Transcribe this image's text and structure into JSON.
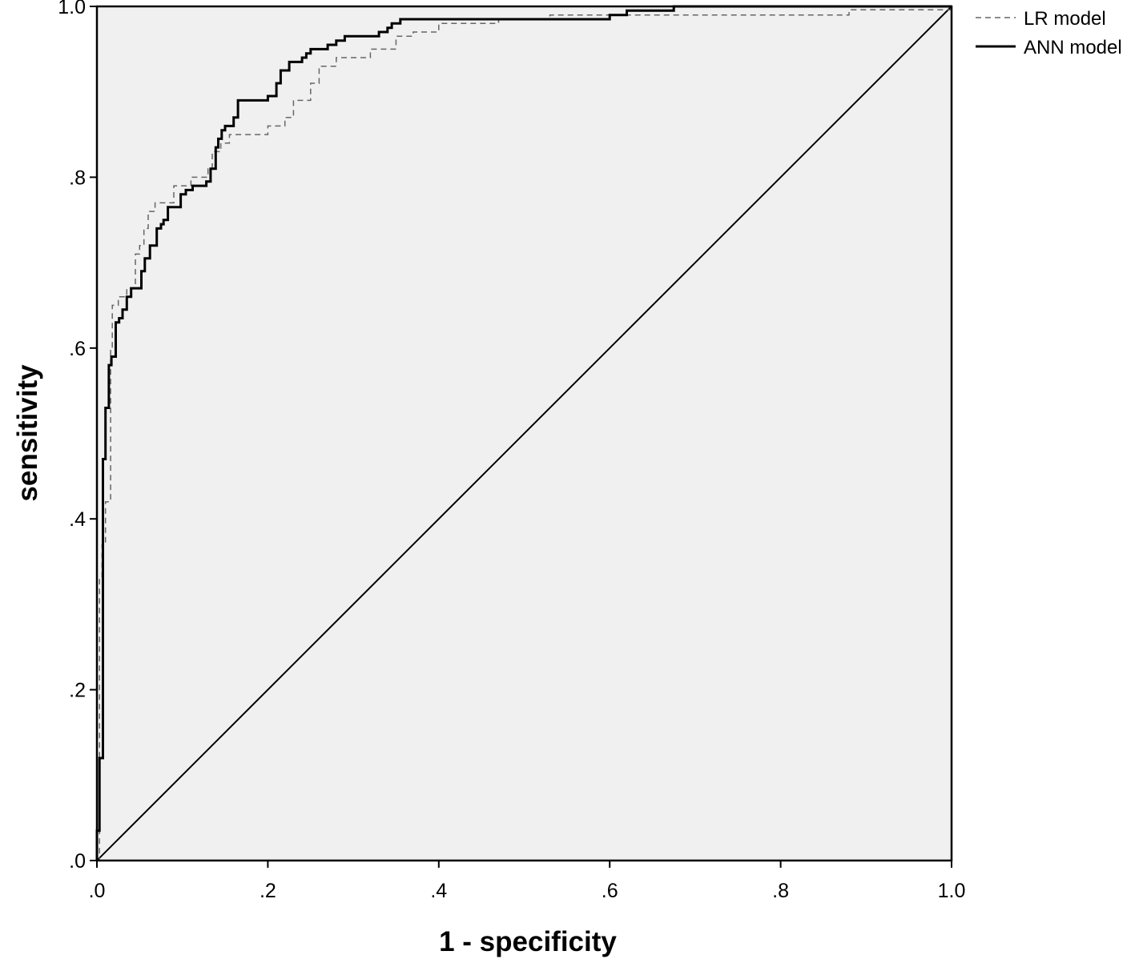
{
  "chart_data": {
    "type": "line",
    "title": "",
    "xlabel": "1 - specificity",
    "ylabel": "sensitivity",
    "xlim": [
      0,
      1
    ],
    "ylim": [
      0,
      1
    ],
    "x_ticks": [
      0,
      0.2,
      0.4,
      0.6,
      0.8,
      1.0
    ],
    "x_tick_labels": [
      ".0",
      ".2",
      ".4",
      ".6",
      ".8",
      "1.0"
    ],
    "y_ticks": [
      0,
      0.2,
      0.4,
      0.6,
      0.8,
      1.0
    ],
    "y_tick_labels": [
      ".0",
      ".2",
      ".4",
      ".6",
      ".8",
      "1.0"
    ],
    "grid": false,
    "background_color": "#f0f0f0",
    "legend_position": "top-right",
    "reference_line": {
      "x": [
        0,
        1
      ],
      "y": [
        0,
        1
      ],
      "color": "#000000"
    },
    "series": [
      {
        "name": "LR model",
        "style": "dashed",
        "color": "#666666",
        "x": [
          0,
          0.003,
          0.003,
          0.006,
          0.006,
          0.01,
          0.01,
          0.016,
          0.016,
          0.018,
          0.018,
          0.025,
          0.025,
          0.035,
          0.035,
          0.045,
          0.045,
          0.05,
          0.05,
          0.055,
          0.055,
          0.06,
          0.06,
          0.068,
          0.068,
          0.09,
          0.09,
          0.11,
          0.11,
          0.13,
          0.13,
          0.135,
          0.135,
          0.145,
          0.145,
          0.155,
          0.155,
          0.2,
          0.2,
          0.22,
          0.22,
          0.23,
          0.23,
          0.25,
          0.25,
          0.26,
          0.26,
          0.28,
          0.28,
          0.32,
          0.32,
          0.35,
          0.35,
          0.37,
          0.37,
          0.4,
          0.4,
          0.47,
          0.47,
          0.53,
          0.53,
          0.88,
          0.88,
          1.0
        ],
        "y": [
          0,
          0,
          0.33,
          0.33,
          0.37,
          0.37,
          0.42,
          0.42,
          0.6,
          0.6,
          0.65,
          0.65,
          0.66,
          0.66,
          0.67,
          0.67,
          0.71,
          0.71,
          0.72,
          0.72,
          0.74,
          0.74,
          0.76,
          0.76,
          0.77,
          0.77,
          0.79,
          0.79,
          0.8,
          0.8,
          0.81,
          0.81,
          0.83,
          0.83,
          0.84,
          0.84,
          0.85,
          0.85,
          0.86,
          0.86,
          0.87,
          0.87,
          0.89,
          0.89,
          0.91,
          0.91,
          0.93,
          0.93,
          0.94,
          0.94,
          0.95,
          0.95,
          0.965,
          0.965,
          0.97,
          0.97,
          0.98,
          0.98,
          0.985,
          0.985,
          0.99,
          0.99,
          0.996,
          0.996
        ]
      },
      {
        "name": "ANN model",
        "style": "solid",
        "color": "#000000",
        "x": [
          0,
          0,
          0.003,
          0.003,
          0.007,
          0.007,
          0.01,
          0.01,
          0.014,
          0.014,
          0.017,
          0.017,
          0.022,
          0.022,
          0.026,
          0.026,
          0.03,
          0.03,
          0.035,
          0.035,
          0.04,
          0.04,
          0.052,
          0.052,
          0.056,
          0.056,
          0.062,
          0.062,
          0.07,
          0.07,
          0.075,
          0.075,
          0.078,
          0.078,
          0.083,
          0.083,
          0.098,
          0.098,
          0.104,
          0.104,
          0.112,
          0.112,
          0.128,
          0.128,
          0.133,
          0.133,
          0.139,
          0.139,
          0.142,
          0.142,
          0.146,
          0.146,
          0.15,
          0.15,
          0.16,
          0.16,
          0.165,
          0.165,
          0.2,
          0.2,
          0.21,
          0.21,
          0.215,
          0.215,
          0.225,
          0.225,
          0.24,
          0.24,
          0.245,
          0.245,
          0.25,
          0.25,
          0.27,
          0.27,
          0.28,
          0.28,
          0.29,
          0.29,
          0.33,
          0.33,
          0.34,
          0.34,
          0.345,
          0.345,
          0.355,
          0.355,
          0.6,
          0.6,
          0.62,
          0.62,
          0.675,
          0.675,
          1.0
        ],
        "y": [
          0,
          0.035,
          0.035,
          0.12,
          0.12,
          0.47,
          0.47,
          0.53,
          0.53,
          0.58,
          0.58,
          0.59,
          0.59,
          0.63,
          0.63,
          0.635,
          0.635,
          0.645,
          0.645,
          0.66,
          0.66,
          0.67,
          0.67,
          0.69,
          0.69,
          0.705,
          0.705,
          0.72,
          0.72,
          0.74,
          0.74,
          0.745,
          0.745,
          0.75,
          0.75,
          0.765,
          0.765,
          0.78,
          0.78,
          0.785,
          0.785,
          0.79,
          0.79,
          0.795,
          0.795,
          0.81,
          0.81,
          0.835,
          0.835,
          0.845,
          0.845,
          0.855,
          0.855,
          0.86,
          0.86,
          0.87,
          0.87,
          0.89,
          0.89,
          0.895,
          0.895,
          0.91,
          0.91,
          0.925,
          0.925,
          0.935,
          0.935,
          0.94,
          0.94,
          0.945,
          0.945,
          0.95,
          0.95,
          0.955,
          0.955,
          0.96,
          0.96,
          0.965,
          0.965,
          0.97,
          0.97,
          0.975,
          0.975,
          0.98,
          0.98,
          0.985,
          0.985,
          0.99,
          0.99,
          0.995,
          0.995,
          1.0,
          1.0
        ]
      }
    ]
  }
}
